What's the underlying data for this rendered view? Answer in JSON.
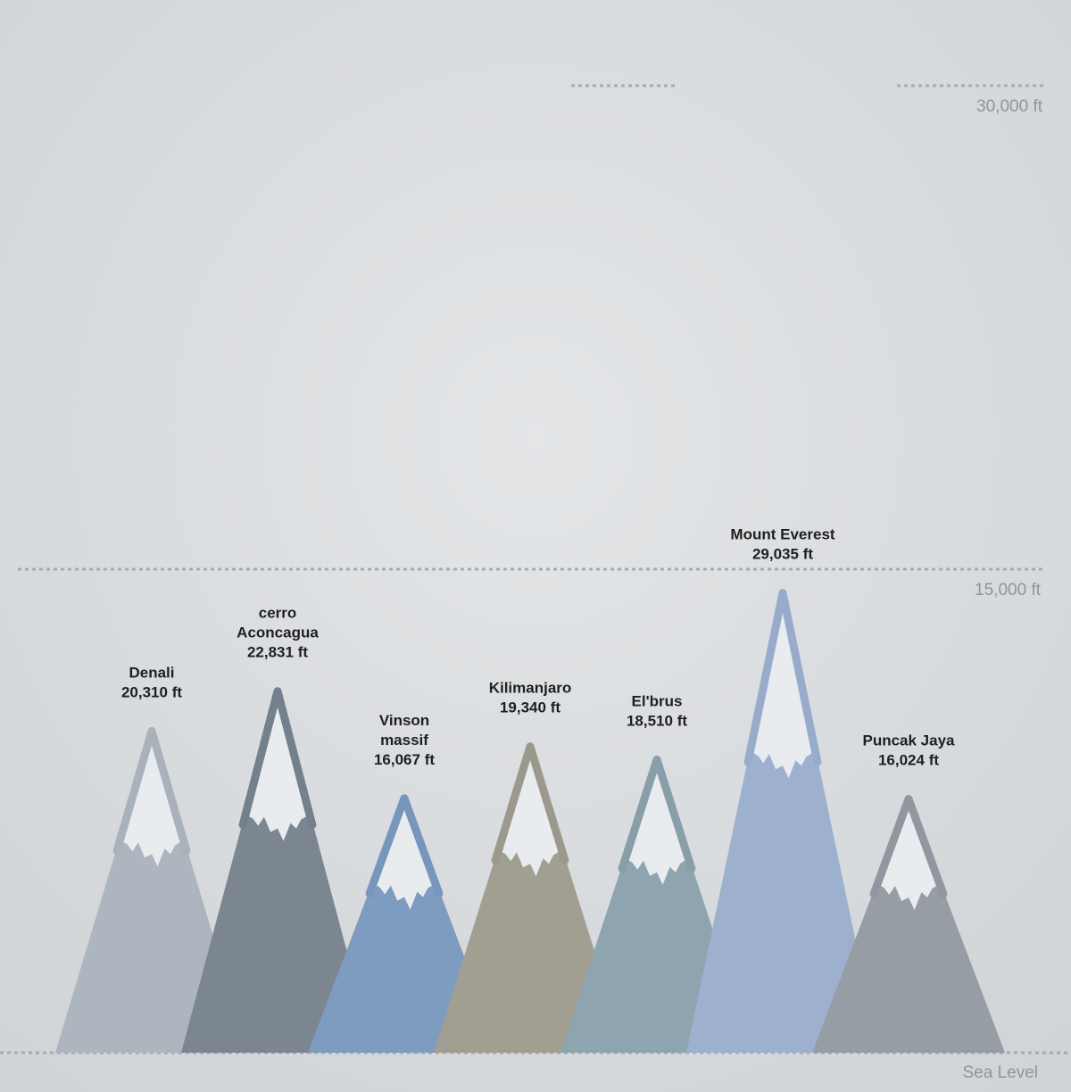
{
  "chart_data": {
    "type": "area",
    "unit": "ft",
    "ylim": [
      0,
      30000
    ],
    "reference_lines": [
      {
        "value": 30000,
        "label": "30,000 ft"
      },
      {
        "value": 15000,
        "label": "15,000 ft"
      },
      {
        "value": 0,
        "label": "Sea Level"
      }
    ],
    "peaks": [
      {
        "name_lines": [
          "Denali"
        ],
        "value": 20310,
        "value_label": "20,310 ft",
        "color": "#adb5bf",
        "outline": "#a9b1bb"
      },
      {
        "name_lines": [
          "cerro",
          "Aconcagua"
        ],
        "value": 22831,
        "value_label": "22,831 ft",
        "color": "#7b8691",
        "outline": "#74808c"
      },
      {
        "name_lines": [
          "Vinson",
          "massif"
        ],
        "value": 16067,
        "value_label": "16,067 ft",
        "color": "#7e9bc0",
        "outline": "#7895bc"
      },
      {
        "name_lines": [
          "Kilimanjaro"
        ],
        "value": 19340,
        "value_label": "19,340 ft",
        "color": "#a19f92",
        "outline": "#9b998b"
      },
      {
        "name_lines": [
          "El'brus"
        ],
        "value": 18510,
        "value_label": "18,510 ft",
        "color": "#8ea4ae",
        "outline": "#889ea8"
      },
      {
        "name_lines": [
          "Mount Everest"
        ],
        "value": 29035,
        "value_label": "29,035 ft",
        "color": "#9db1cf",
        "outline": "#97abca"
      },
      {
        "name_lines": [
          "Puncak Jaya"
        ],
        "value": 16024,
        "value_label": "16,024 ft",
        "color": "#979da4",
        "outline": "#91979f"
      }
    ],
    "snow_color": "#e9ecee",
    "label_color": "#1f1f1f",
    "axis_label_color": "#8f959a",
    "grid_color": "#a6abaf"
  }
}
